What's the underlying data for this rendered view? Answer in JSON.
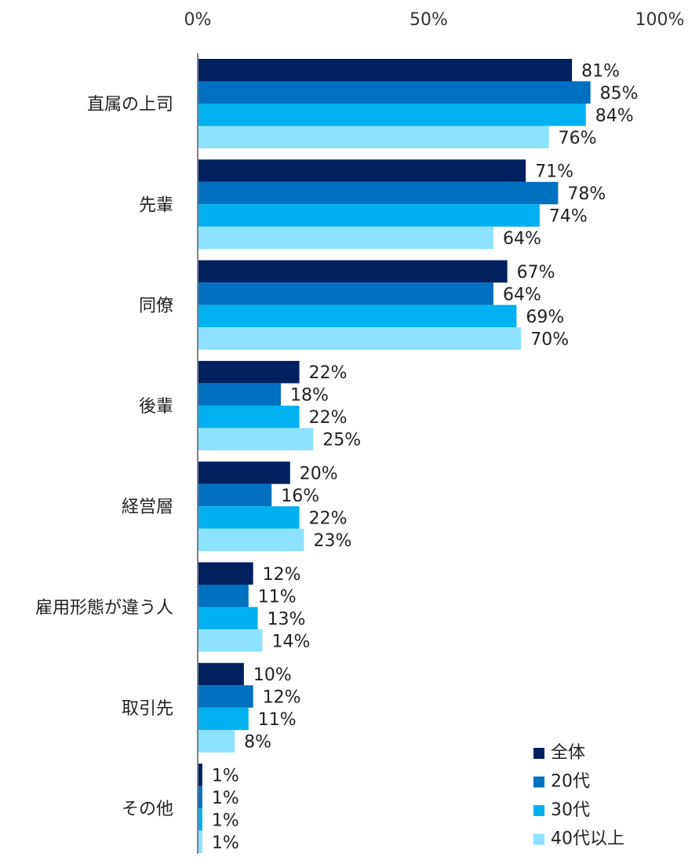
{
  "chart_data": {
    "type": "bar",
    "orientation": "horizontal",
    "title": "",
    "xlabel": "",
    "ylabel": "",
    "xlim": [
      0,
      100
    ],
    "ticks": [
      "0%",
      "50%",
      "100%"
    ],
    "tick_values": [
      0,
      50,
      100
    ],
    "grid": false,
    "legend_position": "bottom-right",
    "categories": [
      "直属の上司",
      "先輩",
      "同僚",
      "後輩",
      "経営層",
      "雇用形態が違う人",
      "取引先",
      "その他"
    ],
    "series": [
      {
        "name": "全体",
        "color": "#002060",
        "values": [
          81,
          71,
          67,
          22,
          20,
          12,
          10,
          1
        ]
      },
      {
        "name": "20代",
        "color": "#0070C0",
        "values": [
          85,
          78,
          64,
          18,
          16,
          11,
          12,
          1
        ]
      },
      {
        "name": "30代",
        "color": "#00B0F0",
        "values": [
          84,
          74,
          69,
          22,
          22,
          13,
          11,
          1
        ]
      },
      {
        "name": "40代以上",
        "color": "#8CE2FF",
        "values": [
          76,
          64,
          70,
          25,
          23,
          14,
          8,
          1
        ]
      }
    ],
    "value_suffix": "%"
  }
}
